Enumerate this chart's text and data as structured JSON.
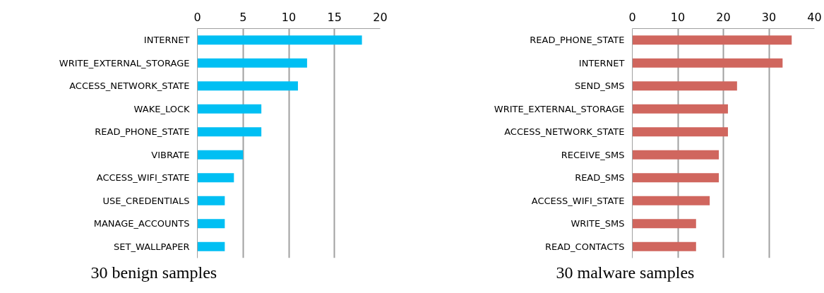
{
  "chart_data": [
    {
      "type": "bar",
      "orientation": "horizontal",
      "title": "30 benign samples",
      "categories": [
        "INTERNET",
        "WRITE_EXTERNAL_STORAGE",
        "ACCESS_NETWORK_STATE",
        "WAKE_LOCK",
        "READ_PHONE_STATE",
        "VIBRATE",
        "ACCESS_WIFI_STATE",
        "USE_CREDENTIALS",
        "MANAGE_ACCOUNTS",
        "SET_WALLPAPER"
      ],
      "values": [
        18,
        12,
        11,
        7,
        7,
        5,
        4,
        3,
        3,
        3
      ],
      "color": "#00bff3",
      "xlim": [
        0,
        20
      ],
      "xticks": [
        0,
        5,
        10,
        15,
        20
      ],
      "grid": "x"
    },
    {
      "type": "bar",
      "orientation": "horizontal",
      "title": "30 malware samples",
      "categories": [
        "READ_PHONE_STATE",
        "INTERNET",
        "SEND_SMS",
        "WRITE_EXTERNAL_STORAGE",
        "ACCESS_NETWORK_STATE",
        "RECEIVE_SMS",
        "READ_SMS",
        "ACCESS_WIFI_STATE",
        "WRITE_SMS",
        "READ_CONTACTS"
      ],
      "values": [
        35,
        33,
        23,
        21,
        21,
        19,
        19,
        17,
        14,
        14
      ],
      "color": "#d0665e",
      "xlim": [
        0,
        40
      ],
      "xticks": [
        0,
        10,
        20,
        30,
        40
      ],
      "grid": "x"
    }
  ]
}
